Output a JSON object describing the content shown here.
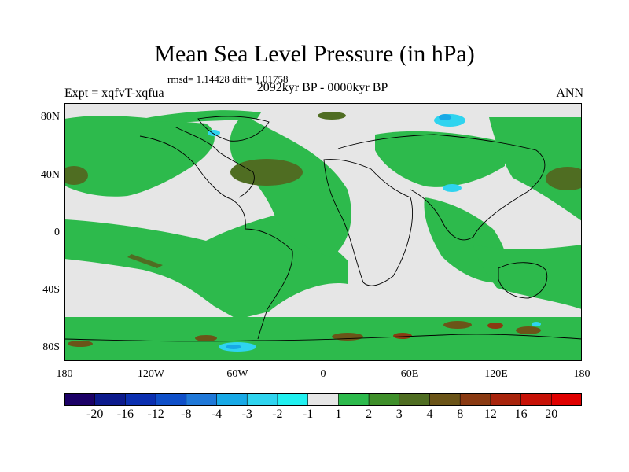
{
  "title": "Mean Sea Level Pressure (in hPa)",
  "stats": "rmsd= 1.14428 diff= 1.01758",
  "experiment": "Expt = xqfvT-xqfua",
  "period": "2092kyr BP - 0000kyr BP",
  "season": "ANN",
  "lat_labels": [
    "80N",
    "40N",
    "0",
    "40S",
    "80S"
  ],
  "lon_labels": [
    "180",
    "120W",
    "60W",
    "0",
    "60E",
    "120E",
    "180"
  ],
  "colorbar": {
    "labels": [
      "-20",
      "-16",
      "-12",
      "-8",
      "-4",
      "-3",
      "-2",
      "-1",
      "1",
      "2",
      "3",
      "4",
      "8",
      "12",
      "16",
      "20"
    ],
    "colors": [
      "#1b0066",
      "#0c1a8c",
      "#0b2fb0",
      "#0f4fc8",
      "#1f78d8",
      "#18a9e6",
      "#2fd4ef",
      "#21f0f0",
      "#e6e6e6",
      "#2dba4c",
      "#3f8f2a",
      "#4f6d22",
      "#6b5418",
      "#8a3a12",
      "#a8240c",
      "#c71106",
      "#e00000"
    ]
  },
  "map_colors": {
    "neutral": "#e6e6e6",
    "green": "#2dba4c",
    "dark_green": "#4f6d22",
    "brown": "#6b5418",
    "red_brown": "#8a3a12",
    "cyan": "#2fd4ef",
    "light_blue": "#18a9e6",
    "coastline": "#000000"
  }
}
